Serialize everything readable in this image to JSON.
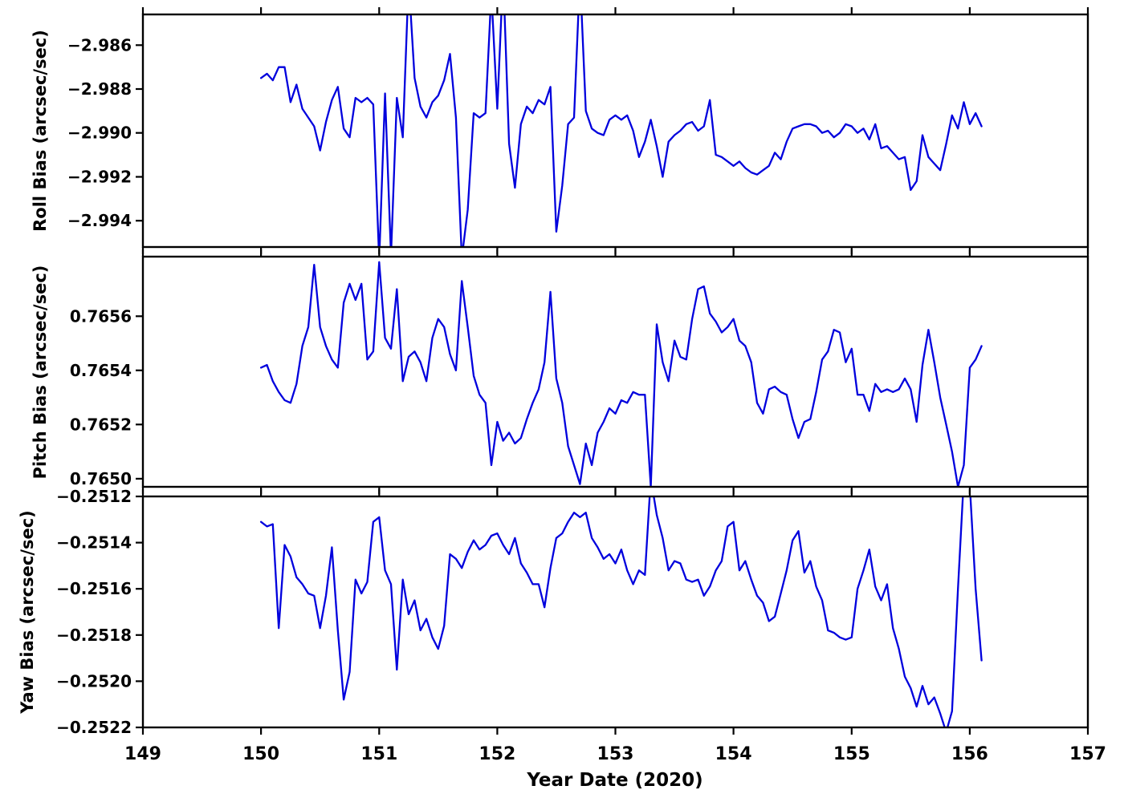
{
  "figure": {
    "xlabel": "Year Date (2020)",
    "xlim": [
      149,
      157
    ],
    "xticks": [
      149,
      150,
      151,
      152,
      153,
      154,
      155,
      156,
      157
    ],
    "xtick_labels": [
      "149",
      "150",
      "151",
      "152",
      "153",
      "154",
      "155",
      "156",
      "157"
    ],
    "background": "#ffffff",
    "line_color": "#0000dd",
    "axis_color": "#000000",
    "grid": false,
    "legend": "none"
  },
  "chart_data": [
    {
      "type": "line",
      "name": "roll-bias",
      "ylabel": "Roll Bias (arcsec/sec)",
      "ylim": [
        -2.9952,
        -2.9846
      ],
      "yticks": [
        -2.994,
        -2.992,
        -2.99,
        -2.988,
        -2.986
      ],
      "ytick_labels": [
        "−2.994",
        "−2.992",
        "−2.990",
        "−2.988",
        "−2.986"
      ],
      "x_start": 150.0,
      "x_step": 0.05,
      "y": [
        -2.9875,
        -2.9873,
        -2.9876,
        -2.987,
        -2.987,
        -2.9886,
        -2.9878,
        -2.9889,
        -2.9893,
        -2.9897,
        -2.9908,
        -2.9895,
        -2.9885,
        -2.9879,
        -2.9898,
        -2.9902,
        -2.9884,
        -2.9886,
        -2.9884,
        -2.9887,
        -2.9958,
        -2.9882,
        -2.9956,
        -2.9884,
        -2.9902,
        -2.983,
        -2.9875,
        -2.9888,
        -2.9893,
        -2.9886,
        -2.9883,
        -2.9876,
        -2.9864,
        -2.9893,
        -2.9957,
        -2.9935,
        -2.9891,
        -2.9893,
        -2.9891,
        -2.9836,
        -2.9889,
        -2.9827,
        -2.9905,
        -2.9925,
        -2.9896,
        -2.9888,
        -2.9891,
        -2.9885,
        -2.9887,
        -2.9879,
        -2.9945,
        -2.9924,
        -2.9896,
        -2.9893,
        -2.9828,
        -2.989,
        -2.9898,
        -2.99,
        -2.9901,
        -2.9894,
        -2.9892,
        -2.9894,
        -2.9892,
        -2.9899,
        -2.9911,
        -2.9904,
        -2.9894,
        -2.9906,
        -2.992,
        -2.9904,
        -2.9901,
        -2.9899,
        -2.9896,
        -2.9895,
        -2.9899,
        -2.9897,
        -2.9885,
        -2.991,
        -2.9911,
        -2.9913,
        -2.9915,
        -2.9913,
        -2.9916,
        -2.9918,
        -2.9919,
        -2.9917,
        -2.9915,
        -2.9909,
        -2.9912,
        -2.9904,
        -2.9898,
        -2.9897,
        -2.9896,
        -2.9896,
        -2.9897,
        -2.99,
        -2.9899,
        -2.9902,
        -2.99,
        -2.9896,
        -2.9897,
        -2.99,
        -2.9898,
        -2.9903,
        -2.9896,
        -2.9907,
        -2.9906,
        -2.9909,
        -2.9912,
        -2.9911,
        -2.9926,
        -2.9922,
        -2.9901,
        -2.9911,
        -2.9914,
        -2.9917,
        -2.9905,
        -2.9892,
        -2.9898,
        -2.9886,
        -2.9896,
        -2.9891,
        -2.9897
      ]
    },
    {
      "type": "line",
      "name": "pitch-bias",
      "ylabel": "Pitch Bias (arcsec/sec)",
      "ylim": [
        0.76497,
        0.76582
      ],
      "yticks": [
        0.765,
        0.7652,
        0.7654,
        0.7656
      ],
      "ytick_labels": [
        "0.7650",
        "0.7652",
        "0.7654",
        "0.7656"
      ],
      "x_start": 150.0,
      "x_step": 0.05,
      "y": [
        0.76541,
        0.76542,
        0.76536,
        0.76532,
        0.76529,
        0.76528,
        0.76535,
        0.76549,
        0.76556,
        0.76579,
        0.76556,
        0.76549,
        0.76544,
        0.76541,
        0.76565,
        0.76572,
        0.76566,
        0.76572,
        0.76544,
        0.76547,
        0.7658,
        0.76552,
        0.76548,
        0.7657,
        0.76536,
        0.76545,
        0.76547,
        0.76543,
        0.76536,
        0.76552,
        0.76559,
        0.76556,
        0.76546,
        0.7654,
        0.76573,
        0.76556,
        0.76538,
        0.76531,
        0.76528,
        0.76505,
        0.76521,
        0.76514,
        0.76517,
        0.76513,
        0.76515,
        0.76522,
        0.76528,
        0.76533,
        0.76543,
        0.76569,
        0.76537,
        0.76528,
        0.76512,
        0.76505,
        0.76498,
        0.76513,
        0.76505,
        0.76517,
        0.76521,
        0.76526,
        0.76524,
        0.76529,
        0.76528,
        0.76532,
        0.76531,
        0.76531,
        0.76497,
        0.76557,
        0.76543,
        0.76536,
        0.76551,
        0.76545,
        0.76544,
        0.76559,
        0.7657,
        0.76571,
        0.76561,
        0.76558,
        0.76554,
        0.76556,
        0.76559,
        0.76551,
        0.76549,
        0.76543,
        0.76528,
        0.76524,
        0.76533,
        0.76534,
        0.76532,
        0.76531,
        0.76522,
        0.76515,
        0.76521,
        0.76522,
        0.76532,
        0.76544,
        0.76547,
        0.76555,
        0.76554,
        0.76543,
        0.76548,
        0.76531,
        0.76531,
        0.76525,
        0.76535,
        0.76532,
        0.76533,
        0.76532,
        0.76533,
        0.76537,
        0.76533,
        0.76521,
        0.76542,
        0.76555,
        0.76543,
        0.7653,
        0.7652,
        0.7651,
        0.76497,
        0.76505,
        0.76541,
        0.76544,
        0.76549
      ]
    },
    {
      "type": "line",
      "name": "yaw-bias",
      "ylabel": "Yaw Bias (arcsec/sec)",
      "ylim": [
        -0.2522,
        -0.2512
      ],
      "yticks": [
        -0.2522,
        -0.252,
        -0.2518,
        -0.2516,
        -0.2514,
        -0.2512
      ],
      "ytick_labels": [
        "−0.2522",
        "−0.2520",
        "−0.2518",
        "−0.2516",
        "−0.2514",
        "−0.2512"
      ],
      "x_start": 150.0,
      "x_step": 0.05,
      "y": [
        -0.25131,
        -0.25133,
        -0.25132,
        -0.25177,
        -0.25141,
        -0.25146,
        -0.25155,
        -0.25158,
        -0.25162,
        -0.25163,
        -0.25177,
        -0.25163,
        -0.25142,
        -0.25178,
        -0.25208,
        -0.25196,
        -0.25156,
        -0.25162,
        -0.25157,
        -0.25131,
        -0.25129,
        -0.25152,
        -0.25158,
        -0.25195,
        -0.25156,
        -0.25171,
        -0.25165,
        -0.25178,
        -0.25173,
        -0.25181,
        -0.25186,
        -0.25176,
        -0.25145,
        -0.25147,
        -0.25151,
        -0.25144,
        -0.25139,
        -0.25143,
        -0.25141,
        -0.25137,
        -0.25136,
        -0.25141,
        -0.25145,
        -0.25138,
        -0.25149,
        -0.25153,
        -0.25158,
        -0.25158,
        -0.25168,
        -0.25151,
        -0.25138,
        -0.25136,
        -0.25131,
        -0.25127,
        -0.25129,
        -0.25127,
        -0.25138,
        -0.25142,
        -0.25147,
        -0.25145,
        -0.25149,
        -0.25143,
        -0.25152,
        -0.25158,
        -0.25152,
        -0.25154,
        -0.25112,
        -0.25128,
        -0.25138,
        -0.25152,
        -0.25148,
        -0.25149,
        -0.25156,
        -0.25157,
        -0.25156,
        -0.25163,
        -0.25159,
        -0.25152,
        -0.25148,
        -0.25133,
        -0.25131,
        -0.25152,
        -0.25148,
        -0.25156,
        -0.25163,
        -0.25166,
        -0.25174,
        -0.25172,
        -0.25162,
        -0.25152,
        -0.25139,
        -0.25135,
        -0.25153,
        -0.25148,
        -0.25159,
        -0.25165,
        -0.25178,
        -0.25179,
        -0.25181,
        -0.25182,
        -0.25181,
        -0.2516,
        -0.25152,
        -0.25143,
        -0.25159,
        -0.25165,
        -0.25158,
        -0.25177,
        -0.25186,
        -0.25198,
        -0.25203,
        -0.25211,
        -0.25202,
        -0.2521,
        -0.25207,
        -0.25214,
        -0.25222,
        -0.25213,
        -0.2516,
        -0.25112,
        -0.25115,
        -0.2516,
        -0.25191
      ]
    }
  ]
}
